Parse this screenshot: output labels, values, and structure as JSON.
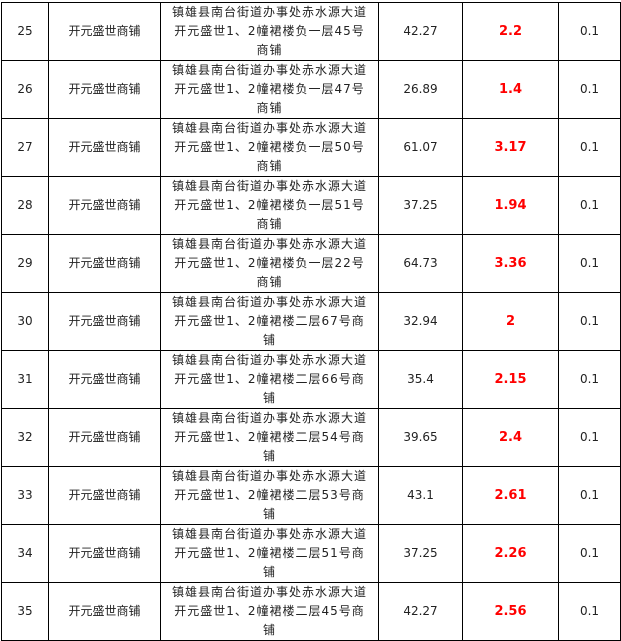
{
  "rows": [
    {
      "no": "25",
      "name": "开元盛世商铺",
      "address": "镇雄县南台街道办事处赤水源大道开元盛世1、2幢裙楼负一层45号商铺",
      "area": "42.27",
      "value": "2.2",
      "rate": "0.1"
    },
    {
      "no": "26",
      "name": "开元盛世商铺",
      "address": "镇雄县南台街道办事处赤水源大道开元盛世1、2幢裙楼负一层47号商铺",
      "area": "26.89",
      "value": "1.4",
      "rate": "0.1"
    },
    {
      "no": "27",
      "name": "开元盛世商铺",
      "address": "镇雄县南台街道办事处赤水源大道开元盛世1、2幢裙楼负一层50号商铺",
      "area": "61.07",
      "value": "3.17",
      "rate": "0.1"
    },
    {
      "no": "28",
      "name": "开元盛世商铺",
      "address": "镇雄县南台街道办事处赤水源大道开元盛世1、2幢裙楼负一层51号商铺",
      "area": "37.25",
      "value": "1.94",
      "rate": "0.1"
    },
    {
      "no": "29",
      "name": "开元盛世商铺",
      "address": "镇雄县南台街道办事处赤水源大道开元盛世1、2幢裙楼负一层22号商铺",
      "area": "64.73",
      "value": "3.36",
      "rate": "0.1"
    },
    {
      "no": "30",
      "name": "开元盛世商铺",
      "address": "镇雄县南台街道办事处赤水源大道开元盛世1、2幢裙楼二层67号商铺",
      "area": "32.94",
      "value": "2",
      "rate": "0.1"
    },
    {
      "no": "31",
      "name": "开元盛世商铺",
      "address": "镇雄县南台街道办事处赤水源大道开元盛世1、2幢裙楼二层66号商铺",
      "area": "35.4",
      "value": "2.15",
      "rate": "0.1"
    },
    {
      "no": "32",
      "name": "开元盛世商铺",
      "address": "镇雄县南台街道办事处赤水源大道开元盛世1、2幢裙楼二层54号商铺",
      "area": "39.65",
      "value": "2.4",
      "rate": "0.1"
    },
    {
      "no": "33",
      "name": "开元盛世商铺",
      "address": "镇雄县南台街道办事处赤水源大道开元盛世1、2幢裙楼二层53号商铺",
      "area": "43.1",
      "value": "2.61",
      "rate": "0.1"
    },
    {
      "no": "34",
      "name": "开元盛世商铺",
      "address": "镇雄县南台街道办事处赤水源大道开元盛世1、2幢裙楼二层51号商铺",
      "area": "37.25",
      "value": "2.26",
      "rate": "0.1"
    },
    {
      "no": "35",
      "name": "开元盛世商铺",
      "address": "镇雄县南台街道办事处赤水源大道开元盛世1、2幢裙楼二层45号商铺",
      "area": "42.27",
      "value": "2.56",
      "rate": "0.1"
    }
  ],
  "colors": {
    "highlight": "#ff0000"
  }
}
